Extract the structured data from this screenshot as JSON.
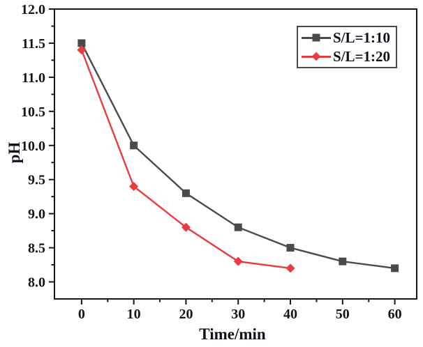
{
  "chart_data": {
    "type": "line",
    "title": "",
    "xlabel": "Time/min",
    "ylabel": "pH",
    "x_ticks": [
      0,
      10,
      20,
      30,
      40,
      50,
      60
    ],
    "x_tick_labels": [
      "0",
      "10",
      "20",
      "30",
      "40",
      "50",
      "60"
    ],
    "x_minor_ticks": [
      5,
      15,
      25,
      35,
      45,
      55
    ],
    "y_ticks": [
      8.0,
      8.5,
      9.0,
      9.5,
      10.0,
      10.5,
      11.0,
      11.5,
      12.0
    ],
    "y_tick_labels": [
      "8.0",
      "8.5",
      "9.0",
      "9.5",
      "10.0",
      "10.5",
      "11.0",
      "11.5",
      "12.0"
    ],
    "y_minor_ticks": [
      8.25,
      8.75,
      9.25,
      9.75,
      10.25,
      10.75,
      11.25,
      11.75
    ],
    "xlim": [
      -5.2,
      64.2
    ],
    "ylim": [
      7.75,
      12.0
    ],
    "grid": false,
    "legend_position": "top-right",
    "axis_color": "#161616",
    "series": [
      {
        "name": "S/L=1:10",
        "color": "#4a4a4a",
        "marker": "square",
        "x": [
          0,
          10,
          20,
          30,
          40,
          50,
          60
        ],
        "y": [
          11.5,
          10.0,
          9.3,
          8.8,
          8.5,
          8.3,
          8.2
        ]
      },
      {
        "name": "S/L=1:20",
        "color": "#e73c42",
        "marker": "diamond",
        "x": [
          0,
          10,
          20,
          30,
          40
        ],
        "y": [
          11.4,
          9.4,
          8.8,
          8.3,
          8.2
        ]
      }
    ]
  }
}
